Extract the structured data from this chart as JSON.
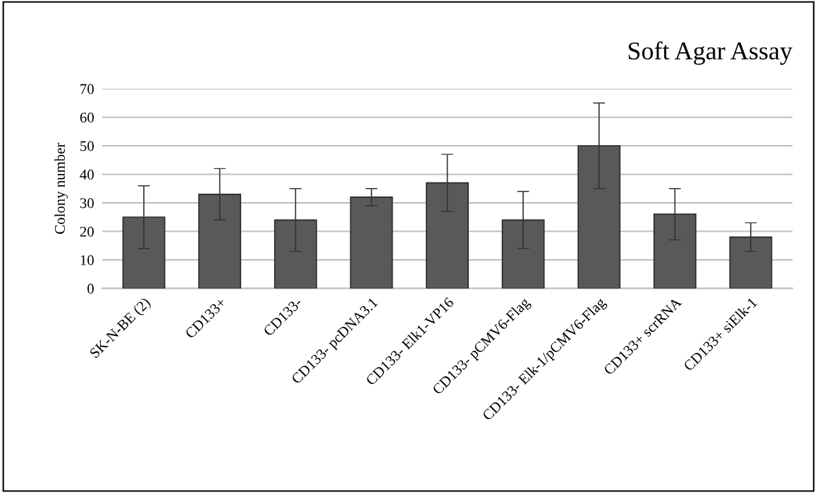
{
  "chart_data": {
    "type": "bar",
    "title": "Soft Agar Assay",
    "ylabel": "Colony number",
    "categories": [
      "SK-N-BE (2)",
      "CD133+",
      "CD133-",
      "CD133- pcDNA3.1",
      "CD133- Elk1-VP16",
      "CD133- pCMV6-Flag",
      "CD133- Elk-1/pCMV6-Flag",
      "CD133+ scrRNA",
      "CD133+ siElk-1"
    ],
    "values": [
      25,
      33,
      24,
      32,
      37,
      24,
      50,
      26,
      18
    ],
    "errors": [
      11,
      9,
      11,
      3,
      10,
      10,
      15,
      9,
      5
    ],
    "color": "#595959",
    "ylim": [
      0,
      70
    ],
    "yticks": [
      0,
      10,
      20,
      30,
      40,
      50,
      60,
      70
    ],
    "grid": "y"
  }
}
